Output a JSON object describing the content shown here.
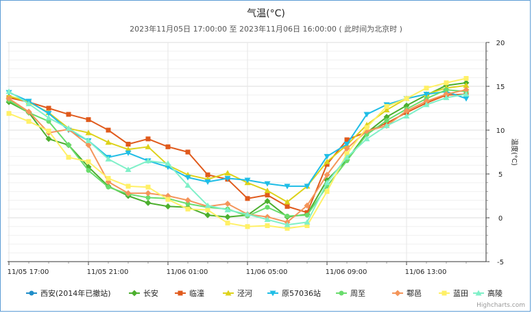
{
  "chart_data": {
    "type": "line",
    "title": "气温(°C)",
    "subtitle": "2023年11月05日 17:00:00 至 2023年11月06日 16:00:00 ( 此时间为北京时 )",
    "xlabel": "",
    "ylabel": "温度(°C)",
    "ylim": [
      -5,
      20
    ],
    "yticks": [
      -5,
      0,
      5,
      10,
      15,
      20
    ],
    "x_tick_labels": [
      "11/05 17:00",
      "11/05 21:00",
      "11/06 01:00",
      "11/06 05:00",
      "11/06 09:00",
      "11/06 13:00"
    ],
    "x_tick_hours": [
      0,
      4,
      8,
      12,
      16,
      20
    ],
    "x_hours": [
      0,
      1,
      2,
      3,
      4,
      5,
      6,
      7,
      8,
      9,
      10,
      11,
      12,
      13,
      14,
      15,
      16,
      17,
      18,
      19,
      20,
      21,
      22,
      23
    ],
    "x_max_hour": 23.7,
    "grid": true,
    "legend_position": "bottom",
    "series": [
      {
        "name": "西安(2014年已撤站)",
        "color": "#1f8dc8",
        "marker": "circle",
        "values": []
      },
      {
        "name": "长安",
        "color": "#4caf2e",
        "marker": "diamond",
        "values": [
          13.2,
          12.0,
          9.0,
          8.3,
          5.8,
          3.6,
          2.5,
          1.7,
          1.3,
          1.2,
          0.3,
          0.1,
          0.3,
          1.9,
          0.1,
          0.4,
          4.3,
          6.6,
          9.7,
          11.5,
          12.8,
          14.0,
          15.1,
          15.4
        ]
      },
      {
        "name": "临潼",
        "color": "#e05a1c",
        "marker": "square",
        "values": [
          13.7,
          13.2,
          12.5,
          11.8,
          11.2,
          10.0,
          8.4,
          9.0,
          8.1,
          7.5,
          4.9,
          4.4,
          2.2,
          2.6,
          1.3,
          0.6,
          6.1,
          8.9,
          9.8,
          10.8,
          12.0,
          13.1,
          14.0,
          14.1
        ]
      },
      {
        "name": "泾河",
        "color": "#ddd21a",
        "marker": "triangle",
        "values": [
          13.9,
          13.2,
          12.0,
          10.2,
          9.7,
          8.6,
          7.8,
          8.1,
          6.0,
          4.9,
          4.4,
          5.1,
          4.0,
          3.1,
          1.8,
          3.6,
          6.4,
          8.3,
          10.6,
          12.3,
          13.6,
          14.1,
          14.8,
          15.1
        ]
      },
      {
        "name": "原57036站",
        "color": "#1fbde6",
        "marker": "triangle-down",
        "values": [
          14.3,
          13.3,
          11.9,
          10.0,
          8.8,
          6.9,
          7.4,
          6.5,
          5.8,
          4.6,
          4.1,
          4.5,
          4.3,
          3.9,
          3.6,
          3.6,
          7.0,
          8.4,
          11.8,
          12.9,
          13.6,
          14.1,
          14.4,
          13.6
        ]
      },
      {
        "name": "周至",
        "color": "#69dc6c",
        "marker": "circle",
        "values": [
          13.4,
          12.0,
          11.0,
          8.3,
          5.4,
          3.5,
          2.7,
          2.3,
          2.2,
          1.6,
          1.2,
          1.0,
          0.2,
          1.2,
          0.2,
          0.3,
          3.6,
          6.5,
          9.5,
          11.1,
          12.4,
          13.6,
          14.6,
          14.4
        ]
      },
      {
        "name": "鄠邑",
        "color": "#f4955a",
        "marker": "diamond",
        "values": [
          13.6,
          12.1,
          9.7,
          10.1,
          8.3,
          4.1,
          2.8,
          2.8,
          2.5,
          2.0,
          1.3,
          1.6,
          0.4,
          0.1,
          -0.5,
          1.4,
          4.9,
          7.9,
          9.9,
          10.5,
          12.2,
          13.3,
          14.1,
          14.6
        ]
      },
      {
        "name": "蓝田",
        "color": "#fff066",
        "marker": "square",
        "values": [
          11.9,
          11.0,
          9.9,
          6.9,
          6.4,
          4.5,
          3.6,
          3.5,
          2.1,
          1.0,
          0.9,
          -0.6,
          -1.0,
          -0.9,
          -1.2,
          -0.9,
          3.0,
          7.3,
          10.3,
          12.7,
          13.6,
          14.8,
          15.4,
          15.9
        ]
      },
      {
        "name": "高陵",
        "color": "#7ff0c8",
        "marker": "triangle",
        "values": [
          14.4,
          13.0,
          11.4,
          10.2,
          8.8,
          6.7,
          5.5,
          6.5,
          6.2,
          3.7,
          1.4,
          0.9,
          0.4,
          -0.2,
          -0.8,
          -0.5,
          4.0,
          6.9,
          9.0,
          10.5,
          11.6,
          12.9,
          13.7,
          14.1
        ]
      }
    ]
  },
  "credits": "Highcharts.com"
}
